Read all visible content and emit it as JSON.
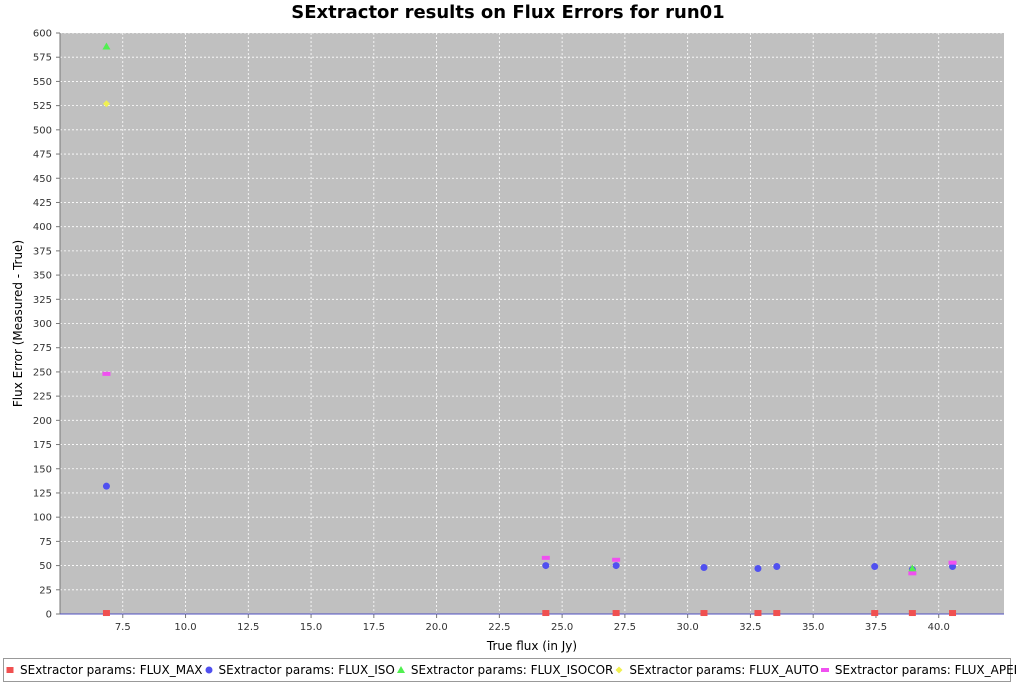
{
  "chart_data": {
    "type": "scatter",
    "title": "SExtractor results on Flux Errors for run01",
    "xlabel": "True flux (in Jy)",
    "ylabel": "Flux Error (Measured - True)",
    "xlim": [
      5.0,
      42.6
    ],
    "ylim": [
      0,
      600
    ],
    "x_ticks": [
      "7.5",
      "10.0",
      "12.5",
      "15.0",
      "17.5",
      "20.0",
      "22.5",
      "25.0",
      "27.5",
      "30.0",
      "32.5",
      "35.0",
      "37.5",
      "40.0"
    ],
    "y_ticks": [
      "0",
      "25",
      "50",
      "75",
      "100",
      "125",
      "150",
      "175",
      "200",
      "225",
      "250",
      "275",
      "300",
      "325",
      "350",
      "375",
      "400",
      "425",
      "450",
      "475",
      "500",
      "525",
      "550",
      "575",
      "600"
    ],
    "grid": true,
    "legend_position": "bottom",
    "background": "#c0c0c0",
    "series": [
      {
        "name": "SExtractor params: FLUX_MAX",
        "marker": "square",
        "color": "#f05050",
        "points": [
          [
            6.85,
            1
          ],
          [
            24.35,
            1
          ],
          [
            27.15,
            1
          ],
          [
            30.65,
            1
          ],
          [
            32.8,
            1
          ],
          [
            33.55,
            1
          ],
          [
            37.45,
            1
          ],
          [
            38.95,
            1
          ],
          [
            40.55,
            1
          ]
        ]
      },
      {
        "name": "SExtractor params: FLUX_ISO",
        "marker": "circle",
        "color": "#5050f0",
        "points": [
          [
            6.85,
            132
          ],
          [
            24.35,
            50
          ],
          [
            27.15,
            50
          ],
          [
            30.65,
            48
          ],
          [
            32.8,
            47
          ],
          [
            33.55,
            49
          ],
          [
            37.45,
            49
          ],
          [
            38.95,
            46
          ],
          [
            40.55,
            49
          ]
        ]
      },
      {
        "name": "SExtractor params: FLUX_ISOCOR",
        "marker": "triangle",
        "color": "#50f050",
        "points": [
          [
            6.85,
            586
          ],
          [
            38.95,
            47
          ]
        ]
      },
      {
        "name": "SExtractor params: FLUX_AUTO",
        "marker": "diamond",
        "color": "#f0f050",
        "points": [
          [
            6.85,
            527
          ]
        ]
      },
      {
        "name": "SExtractor params: FLUX_APER",
        "marker": "rect",
        "color": "#f050f0",
        "points": [
          [
            6.85,
            248
          ],
          [
            24.35,
            58
          ],
          [
            27.15,
            56
          ],
          [
            38.95,
            42
          ],
          [
            40.55,
            53
          ]
        ]
      }
    ]
  }
}
